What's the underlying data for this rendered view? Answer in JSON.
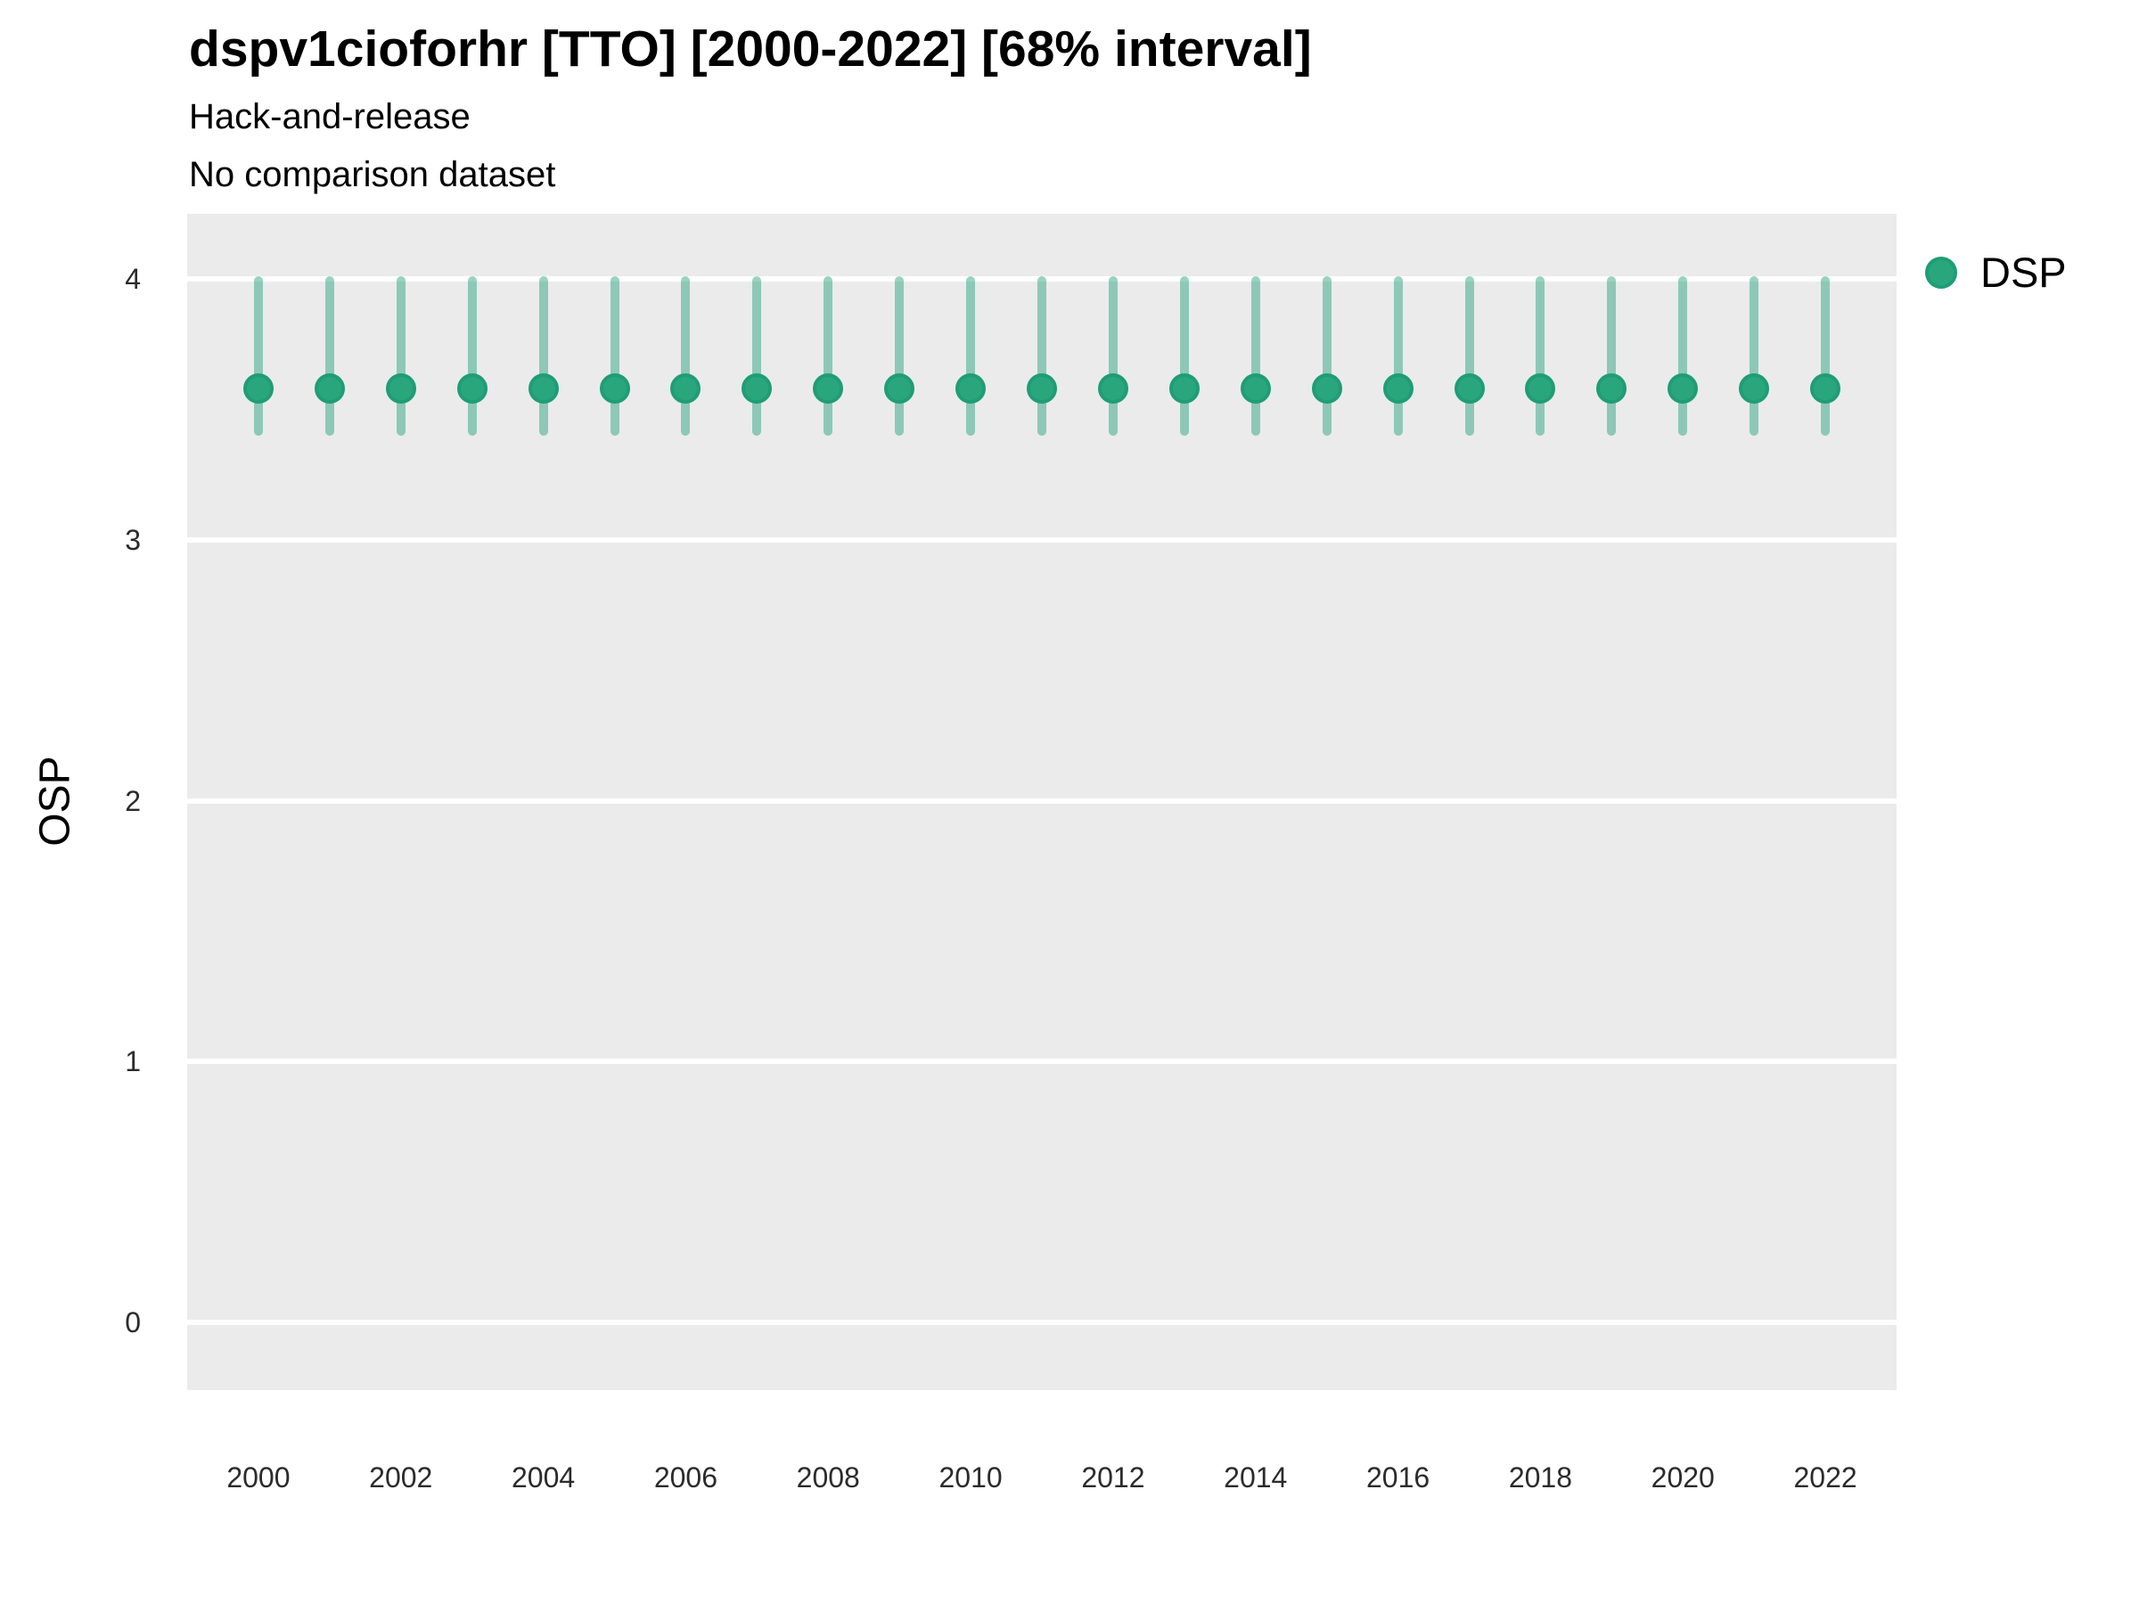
{
  "figure": {
    "title": "dspv1cioforhr [TTO] [2000-2022] [68% interval]",
    "subtitle1": "Hack-and-release",
    "subtitle2": "No comparison dataset"
  },
  "legend": {
    "position": "right",
    "items": [
      {
        "label": "DSP",
        "swatch": "legend-point-swatch"
      }
    ]
  },
  "colors": {
    "panel_bg": "#ebebeb",
    "gridline": "#ffffff",
    "point_fill": "#2aa67d",
    "point_stroke": "#1f9d76",
    "interval_line": "rgba(27,158,119,0.45)",
    "text": "#000000",
    "tick_text": "#2b2b2b"
  },
  "chart_data": {
    "type": "scatter",
    "mark": "pointrange",
    "title": "dspv1cioforhr [TTO] [2000-2022] [68% interval]",
    "subtitle": [
      "Hack-and-release",
      "No comparison dataset"
    ],
    "xlabel": "",
    "ylabel": "OSP",
    "xlim": [
      1999,
      2023
    ],
    "ylim": [
      -0.26,
      4.25
    ],
    "xticks": [
      2000,
      2002,
      2004,
      2006,
      2008,
      2010,
      2012,
      2014,
      2016,
      2018,
      2020,
      2022
    ],
    "yticks": [
      0,
      1,
      2,
      3,
      4
    ],
    "grid": "horizontal-major-white-on-gray",
    "legend_position": "right",
    "interval_label": "68% interval",
    "series": [
      {
        "name": "DSP",
        "points": [
          {
            "x": 2000,
            "y": 3.58,
            "lo": 3.4,
            "hi": 4.01
          },
          {
            "x": 2001,
            "y": 3.58,
            "lo": 3.4,
            "hi": 4.01
          },
          {
            "x": 2002,
            "y": 3.58,
            "lo": 3.4,
            "hi": 4.01
          },
          {
            "x": 2003,
            "y": 3.58,
            "lo": 3.4,
            "hi": 4.01
          },
          {
            "x": 2004,
            "y": 3.58,
            "lo": 3.4,
            "hi": 4.01
          },
          {
            "x": 2005,
            "y": 3.58,
            "lo": 3.4,
            "hi": 4.01
          },
          {
            "x": 2006,
            "y": 3.58,
            "lo": 3.4,
            "hi": 4.01
          },
          {
            "x": 2007,
            "y": 3.58,
            "lo": 3.4,
            "hi": 4.01
          },
          {
            "x": 2008,
            "y": 3.58,
            "lo": 3.4,
            "hi": 4.01
          },
          {
            "x": 2009,
            "y": 3.58,
            "lo": 3.4,
            "hi": 4.01
          },
          {
            "x": 2010,
            "y": 3.58,
            "lo": 3.4,
            "hi": 4.01
          },
          {
            "x": 2011,
            "y": 3.58,
            "lo": 3.4,
            "hi": 4.01
          },
          {
            "x": 2012,
            "y": 3.58,
            "lo": 3.4,
            "hi": 4.01
          },
          {
            "x": 2013,
            "y": 3.58,
            "lo": 3.4,
            "hi": 4.01
          },
          {
            "x": 2014,
            "y": 3.58,
            "lo": 3.4,
            "hi": 4.01
          },
          {
            "x": 2015,
            "y": 3.58,
            "lo": 3.4,
            "hi": 4.01
          },
          {
            "x": 2016,
            "y": 3.58,
            "lo": 3.4,
            "hi": 4.01
          },
          {
            "x": 2017,
            "y": 3.58,
            "lo": 3.4,
            "hi": 4.01
          },
          {
            "x": 2018,
            "y": 3.58,
            "lo": 3.4,
            "hi": 4.01
          },
          {
            "x": 2019,
            "y": 3.58,
            "lo": 3.4,
            "hi": 4.01
          },
          {
            "x": 2020,
            "y": 3.58,
            "lo": 3.4,
            "hi": 4.01
          },
          {
            "x": 2021,
            "y": 3.58,
            "lo": 3.4,
            "hi": 4.01
          },
          {
            "x": 2022,
            "y": 3.58,
            "lo": 3.4,
            "hi": 4.01
          }
        ]
      }
    ]
  }
}
